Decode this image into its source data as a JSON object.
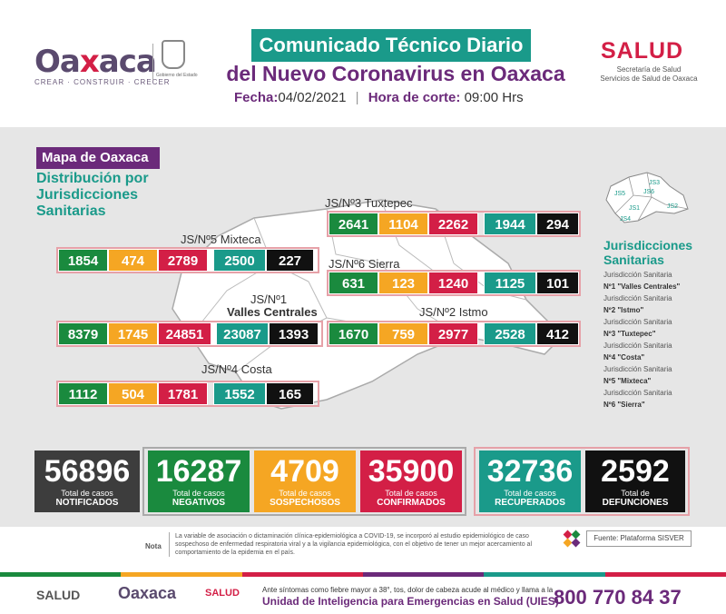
{
  "header": {
    "oaxaca_logo": "Oaxaca",
    "oaxaca_tagline": "CREAR · CONSTRUIR · CRECER",
    "gobierno_caption": "Gobierno del Estado",
    "title_line1": "Comunicado Técnico Diario",
    "title_line2": "del Nuevo Coronavirus en Oaxaca",
    "fecha_label": "Fecha:",
    "fecha_value": "04/02/2021",
    "hora_label": "Hora de corte:",
    "hora_value": "09:00 Hrs",
    "salud_logo": "SALUD",
    "salud_sub1": "Secretaría de Salud",
    "salud_sub2": "Servicios de Salud de Oaxaca"
  },
  "map": {
    "tag": "Mapa de Oaxaca",
    "subtitle1": "Distribución por",
    "subtitle2": "Jurisdicciones",
    "subtitle3": "Sanitarias"
  },
  "colors": {
    "negativos": "#1a8a3e",
    "sospechosos": "#f5a623",
    "confirmados": "#d31f46",
    "recuperados": "#1a9a8a",
    "defunciones": "#111111",
    "notificados": "#3d3d3d",
    "purple": "#6b2a7a"
  },
  "jurisdictions": [
    {
      "label": "JS/Nº3 Tuxtepec",
      "neg": "2641",
      "sos": "1104",
      "conf": "2262",
      "rec": "1944",
      "def": "294"
    },
    {
      "label": "JS/Nº5 Mixteca",
      "neg": "1854",
      "sos": "474",
      "conf": "2789",
      "rec": "2500",
      "def": "227"
    },
    {
      "label": "JS/Nº6 Sierra",
      "neg": "631",
      "sos": "123",
      "conf": "1240",
      "rec": "1125",
      "def": "101"
    },
    {
      "label1": "JS/Nº1",
      "label2": "Valles Centrales",
      "neg": "8379",
      "sos": "1745",
      "conf": "24851",
      "rec": "23087",
      "def": "1393"
    },
    {
      "label": "JS/Nº2 Istmo",
      "neg": "1670",
      "sos": "759",
      "conf": "2977",
      "rec": "2528",
      "def": "412"
    },
    {
      "label": "JS/Nº4 Costa",
      "neg": "1112",
      "sos": "504",
      "conf": "1781",
      "rec": "1552",
      "def": "165"
    }
  ],
  "mini_map": {
    "labels": [
      "JS3",
      "JS5",
      "JS6",
      "JS1",
      "JS2",
      "JS4"
    ]
  },
  "legend": {
    "title1": "Jurisdicciones",
    "title2": "Sanitarias",
    "items": [
      {
        "pre": "Jurisdicción Sanitaria",
        "name": "Nº1 \"Valles Centrales\""
      },
      {
        "pre": "Jurisdicción Sanitaria",
        "name": "Nº2 \"Istmo\""
      },
      {
        "pre": "Jurisdicción Sanitaria",
        "name": "Nº3 \"Tuxtepec\""
      },
      {
        "pre": "Jurisdicción Sanitaria",
        "name": "Nº4 \"Costa\""
      },
      {
        "pre": "Jurisdicción Sanitaria",
        "name": "Nº5 \"Mixteca\""
      },
      {
        "pre": "Jurisdicción Sanitaria",
        "name": "Nº6 \"Sierra\""
      }
    ]
  },
  "totals": [
    {
      "value": "56896",
      "l1": "Total de casos",
      "l2": "NOTIFICADOS"
    },
    {
      "value": "16287",
      "l1": "Total de casos",
      "l2": "NEGATIVOS"
    },
    {
      "value": "4709",
      "l1": "Total de casos",
      "l2": "SOSPECHOSOS"
    },
    {
      "value": "35900",
      "l1": "Total de casos",
      "l2": "CONFIRMADOS"
    },
    {
      "value": "32736",
      "l1": "Total de casos",
      "l2": "RECUPERADOS"
    },
    {
      "value": "2592",
      "l1": "Total de",
      "l2": "DEFUNCIONES"
    }
  ],
  "nota": {
    "tag": "Nota",
    "text": "La variable de asociación o dictaminación clínica-epidemiológica a COVID-19, se incorporó al estudio epidemiológico de caso sospechoso de enfermedad respiratoria viral y a la vigilancia epidemiológica, con el objetivo de tener un mejor acercamiento al comportamiento de la epidemia en el país."
  },
  "fuente": "Fuente: Plataforma SISVER",
  "footer": {
    "salud": "SALUD",
    "oaxaca": "Oaxaca",
    "salud2": "SALUD",
    "msg": "Ante síntomas como fiebre mayor a 38°, tos, dolor de cabeza acude al médico y llama a la",
    "uies": "Unidad de Inteligencia para Emergencias en Salud (UIES)",
    "phone": "800 770 84 37"
  }
}
